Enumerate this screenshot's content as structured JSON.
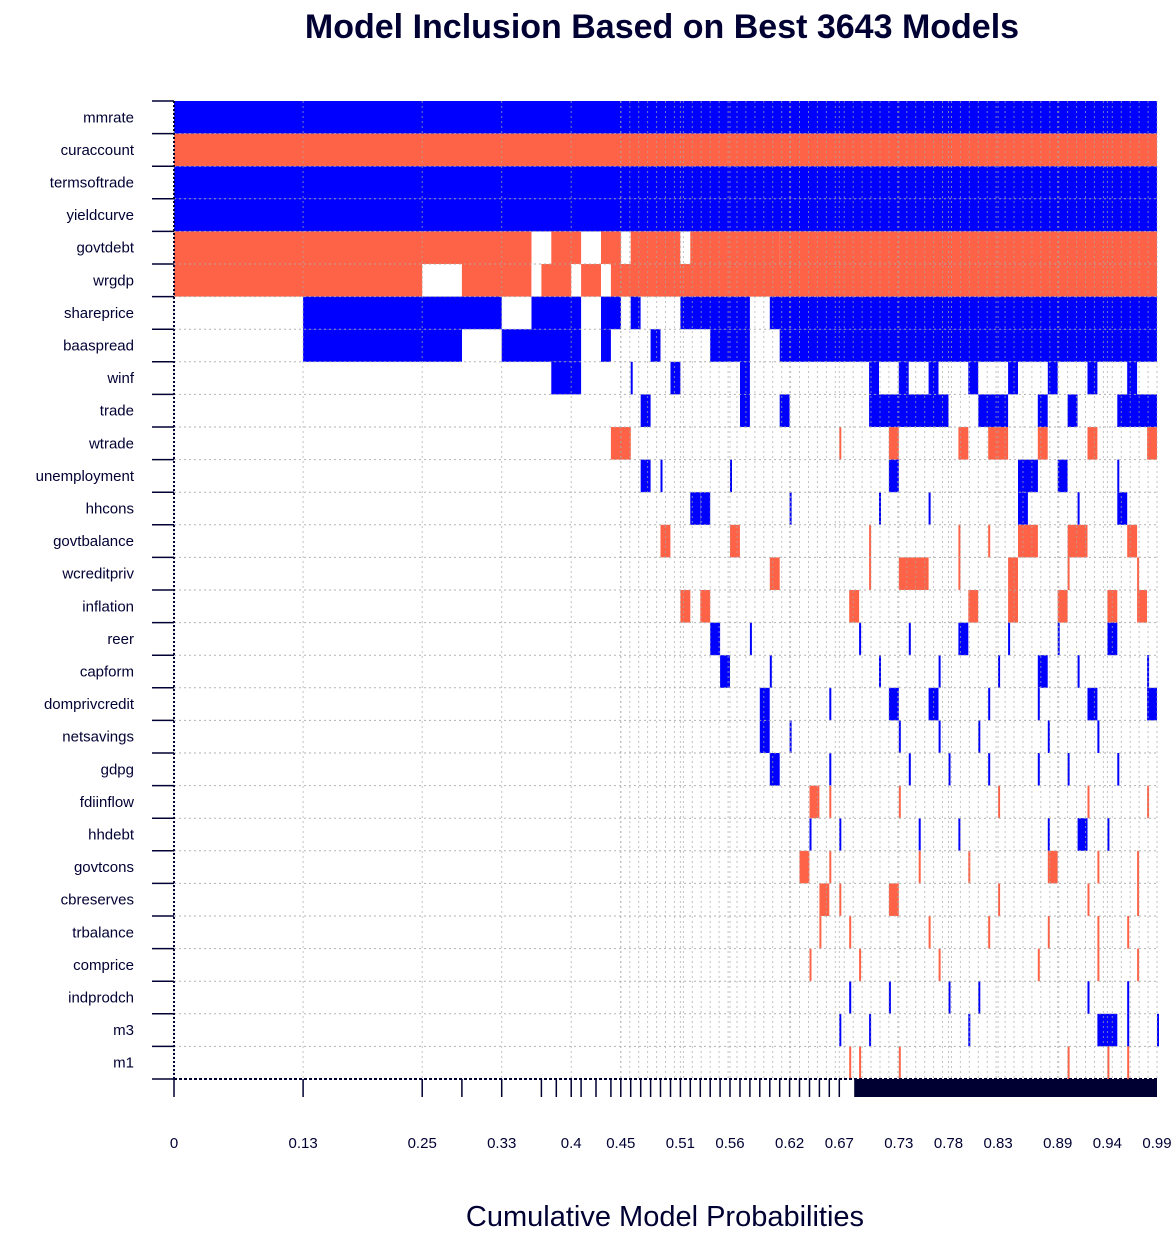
{
  "chart_data": {
    "type": "heatmap",
    "title": "Model Inclusion Based on Best  3643  Models",
    "xlabel": "Cumulative Model Probabilities",
    "ylabel": "",
    "xlim": [
      0,
      0.99
    ],
    "x_tick_labels": [
      "0",
      "0.13",
      "0.25",
      "0.33",
      "0.4",
      "0.45",
      "0.51",
      "0.56",
      "0.62",
      "0.67",
      "0.73",
      "0.78",
      "0.83",
      "0.89",
      "0.94",
      "0.99"
    ],
    "x_tick_values": [
      0,
      0.13,
      0.25,
      0.33,
      0.4,
      0.45,
      0.51,
      0.56,
      0.62,
      0.67,
      0.73,
      0.78,
      0.83,
      0.89,
      0.94,
      0.99
    ],
    "grid": true,
    "colors": {
      "positive": "#0000FF",
      "negative": "#FF6347",
      "axis": "#000033",
      "grid": "#AAAAAA",
      "text": "#000033"
    },
    "variables": [
      {
        "name": "mmrate",
        "sign": "positive",
        "inclusion": [
          [
            0,
            0.99
          ]
        ]
      },
      {
        "name": "curaccount",
        "sign": "negative",
        "inclusion": [
          [
            0,
            0.99
          ]
        ]
      },
      {
        "name": "termsoftrade",
        "sign": "positive",
        "inclusion": [
          [
            0,
            0.99
          ]
        ]
      },
      {
        "name": "yieldcurve",
        "sign": "positive",
        "inclusion": [
          [
            0,
            0.99
          ]
        ]
      },
      {
        "name": "govtdebt",
        "sign": "negative",
        "inclusion": [
          [
            0,
            0.36
          ],
          [
            0.38,
            0.41
          ],
          [
            0.43,
            0.45
          ],
          [
            0.46,
            0.51
          ],
          [
            0.52,
            0.61
          ],
          [
            0.61,
            0.99
          ]
        ]
      },
      {
        "name": "wrgdp",
        "sign": "negative",
        "inclusion": [
          [
            0,
            0.25
          ],
          [
            0.29,
            0.36
          ],
          [
            0.37,
            0.4
          ],
          [
            0.41,
            0.43
          ],
          [
            0.44,
            0.99
          ]
        ]
      },
      {
        "name": "shareprice",
        "sign": "positive",
        "inclusion": [
          [
            0.13,
            0.33
          ],
          [
            0.36,
            0.41
          ],
          [
            0.43,
            0.45
          ],
          [
            0.46,
            0.47
          ],
          [
            0.51,
            0.58
          ],
          [
            0.6,
            0.99
          ]
        ]
      },
      {
        "name": "baaspread",
        "sign": "positive",
        "inclusion": [
          [
            0.13,
            0.29
          ],
          [
            0.33,
            0.41
          ],
          [
            0.43,
            0.44
          ],
          [
            0.48,
            0.49
          ],
          [
            0.54,
            0.58
          ],
          [
            0.61,
            0.99
          ]
        ]
      },
      {
        "name": "winf",
        "sign": "positive",
        "inclusion": [
          [
            0.38,
            0.41
          ],
          [
            0.46,
            0.46
          ],
          [
            0.5,
            0.51
          ],
          [
            0.57,
            0.58
          ],
          [
            0.7,
            0.71
          ],
          [
            0.73,
            0.74
          ],
          [
            0.76,
            0.77
          ],
          [
            0.8,
            0.81
          ],
          [
            0.84,
            0.85
          ],
          [
            0.88,
            0.89
          ],
          [
            0.92,
            0.93
          ],
          [
            0.96,
            0.97
          ]
        ]
      },
      {
        "name": "trade",
        "sign": "positive",
        "inclusion": [
          [
            0.47,
            0.48
          ],
          [
            0.57,
            0.58
          ],
          [
            0.61,
            0.62
          ],
          [
            0.7,
            0.78
          ],
          [
            0.81,
            0.84
          ],
          [
            0.87,
            0.88
          ],
          [
            0.9,
            0.91
          ],
          [
            0.95,
            0.99
          ]
        ]
      },
      {
        "name": "wtrade",
        "sign": "negative",
        "inclusion": [
          [
            0.44,
            0.46
          ],
          [
            0.67,
            0.67
          ],
          [
            0.72,
            0.73
          ],
          [
            0.79,
            0.8
          ],
          [
            0.82,
            0.84
          ],
          [
            0.87,
            0.88
          ],
          [
            0.92,
            0.93
          ],
          [
            0.98,
            0.99
          ]
        ]
      },
      {
        "name": "unemployment",
        "sign": "positive",
        "inclusion": [
          [
            0.47,
            0.48
          ],
          [
            0.49,
            0.49
          ],
          [
            0.56,
            0.56
          ],
          [
            0.72,
            0.73
          ],
          [
            0.85,
            0.87
          ],
          [
            0.89,
            0.9
          ],
          [
            0.95,
            0.95
          ]
        ]
      },
      {
        "name": "hhcons",
        "sign": "positive",
        "inclusion": [
          [
            0.52,
            0.53
          ],
          [
            0.53,
            0.54
          ],
          [
            0.62,
            0.62
          ],
          [
            0.71,
            0.71
          ],
          [
            0.76,
            0.76
          ],
          [
            0.85,
            0.86
          ],
          [
            0.91,
            0.91
          ],
          [
            0.95,
            0.96
          ]
        ]
      },
      {
        "name": "govtbalance",
        "sign": "negative",
        "inclusion": [
          [
            0.49,
            0.5
          ],
          [
            0.56,
            0.57
          ],
          [
            0.7,
            0.7
          ],
          [
            0.79,
            0.79
          ],
          [
            0.82,
            0.82
          ],
          [
            0.85,
            0.87
          ],
          [
            0.9,
            0.92
          ],
          [
            0.96,
            0.97
          ]
        ]
      },
      {
        "name": "wcreditpriv",
        "sign": "negative",
        "inclusion": [
          [
            0.6,
            0.61
          ],
          [
            0.7,
            0.7
          ],
          [
            0.73,
            0.76
          ],
          [
            0.79,
            0.79
          ],
          [
            0.84,
            0.85
          ],
          [
            0.9,
            0.9
          ],
          [
            0.97,
            0.97
          ]
        ]
      },
      {
        "name": "inflation",
        "sign": "negative",
        "inclusion": [
          [
            0.51,
            0.52
          ],
          [
            0.53,
            0.54
          ],
          [
            0.68,
            0.69
          ],
          [
            0.8,
            0.81
          ],
          [
            0.84,
            0.85
          ],
          [
            0.89,
            0.9
          ],
          [
            0.94,
            0.95
          ],
          [
            0.97,
            0.98
          ]
        ]
      },
      {
        "name": "reer",
        "sign": "positive",
        "inclusion": [
          [
            0.54,
            0.55
          ],
          [
            0.58,
            0.58
          ],
          [
            0.69,
            0.69
          ],
          [
            0.74,
            0.74
          ],
          [
            0.79,
            0.8
          ],
          [
            0.84,
            0.84
          ],
          [
            0.89,
            0.89
          ],
          [
            0.94,
            0.95
          ]
        ]
      },
      {
        "name": "capform",
        "sign": "positive",
        "inclusion": [
          [
            0.55,
            0.56
          ],
          [
            0.6,
            0.6
          ],
          [
            0.71,
            0.71
          ],
          [
            0.77,
            0.77
          ],
          [
            0.83,
            0.83
          ],
          [
            0.87,
            0.88
          ],
          [
            0.91,
            0.91
          ],
          [
            0.98,
            0.98
          ]
        ]
      },
      {
        "name": "domprivcredit",
        "sign": "positive",
        "inclusion": [
          [
            0.59,
            0.6
          ],
          [
            0.66,
            0.66
          ],
          [
            0.72,
            0.73
          ],
          [
            0.76,
            0.77
          ],
          [
            0.82,
            0.82
          ],
          [
            0.87,
            0.87
          ],
          [
            0.92,
            0.93
          ],
          [
            0.98,
            0.99
          ]
        ]
      },
      {
        "name": "netsavings",
        "sign": "positive",
        "inclusion": [
          [
            0.59,
            0.6
          ],
          [
            0.62,
            0.62
          ],
          [
            0.73,
            0.73
          ],
          [
            0.77,
            0.77
          ],
          [
            0.81,
            0.81
          ],
          [
            0.88,
            0.88
          ],
          [
            0.93,
            0.93
          ]
        ]
      },
      {
        "name": "gdpg",
        "sign": "positive",
        "inclusion": [
          [
            0.6,
            0.61
          ],
          [
            0.66,
            0.66
          ],
          [
            0.74,
            0.74
          ],
          [
            0.78,
            0.78
          ],
          [
            0.82,
            0.82
          ],
          [
            0.87,
            0.87
          ],
          [
            0.9,
            0.9
          ],
          [
            0.95,
            0.95
          ]
        ]
      },
      {
        "name": "fdiinflow",
        "sign": "negative",
        "inclusion": [
          [
            0.64,
            0.65
          ],
          [
            0.66,
            0.66
          ],
          [
            0.73,
            0.73
          ],
          [
            0.83,
            0.83
          ],
          [
            0.92,
            0.92
          ],
          [
            0.98,
            0.98
          ]
        ]
      },
      {
        "name": "hhdebt",
        "sign": "positive",
        "inclusion": [
          [
            0.64,
            0.64
          ],
          [
            0.67,
            0.67
          ],
          [
            0.75,
            0.75
          ],
          [
            0.79,
            0.79
          ],
          [
            0.88,
            0.88
          ],
          [
            0.91,
            0.92
          ],
          [
            0.94,
            0.94
          ]
        ]
      },
      {
        "name": "govtcons",
        "sign": "negative",
        "inclusion": [
          [
            0.63,
            0.64
          ],
          [
            0.66,
            0.66
          ],
          [
            0.75,
            0.75
          ],
          [
            0.8,
            0.8
          ],
          [
            0.88,
            0.89
          ],
          [
            0.93,
            0.93
          ],
          [
            0.97,
            0.97
          ]
        ]
      },
      {
        "name": "cbreserves",
        "sign": "negative",
        "inclusion": [
          [
            0.65,
            0.66
          ],
          [
            0.67,
            0.67
          ],
          [
            0.72,
            0.73
          ],
          [
            0.83,
            0.83
          ],
          [
            0.92,
            0.92
          ],
          [
            0.97,
            0.97
          ]
        ]
      },
      {
        "name": "trbalance",
        "sign": "negative",
        "inclusion": [
          [
            0.65,
            0.65
          ],
          [
            0.68,
            0.68
          ],
          [
            0.76,
            0.76
          ],
          [
            0.82,
            0.82
          ],
          [
            0.88,
            0.88
          ],
          [
            0.93,
            0.93
          ],
          [
            0.96,
            0.96
          ]
        ]
      },
      {
        "name": "comprice",
        "sign": "negative",
        "inclusion": [
          [
            0.64,
            0.64
          ],
          [
            0.69,
            0.69
          ],
          [
            0.77,
            0.77
          ],
          [
            0.87,
            0.87
          ],
          [
            0.93,
            0.93
          ],
          [
            0.97,
            0.97
          ]
        ]
      },
      {
        "name": "indprodch",
        "sign": "positive",
        "inclusion": [
          [
            0.68,
            0.68
          ],
          [
            0.72,
            0.72
          ],
          [
            0.78,
            0.78
          ],
          [
            0.81,
            0.81
          ],
          [
            0.92,
            0.92
          ],
          [
            0.96,
            0.96
          ]
        ]
      },
      {
        "name": "m3",
        "sign": "positive",
        "inclusion": [
          [
            0.67,
            0.67
          ],
          [
            0.7,
            0.7
          ],
          [
            0.8,
            0.8
          ],
          [
            0.93,
            0.95
          ],
          [
            0.96,
            0.96
          ],
          [
            0.99,
            0.99
          ]
        ]
      },
      {
        "name": "m1",
        "sign": "negative",
        "inclusion": [
          [
            0.68,
            0.68
          ],
          [
            0.69,
            0.69
          ],
          [
            0.73,
            0.73
          ],
          [
            0.9,
            0.9
          ],
          [
            0.94,
            0.94
          ],
          [
            0.96,
            0.96
          ]
        ]
      }
    ]
  }
}
